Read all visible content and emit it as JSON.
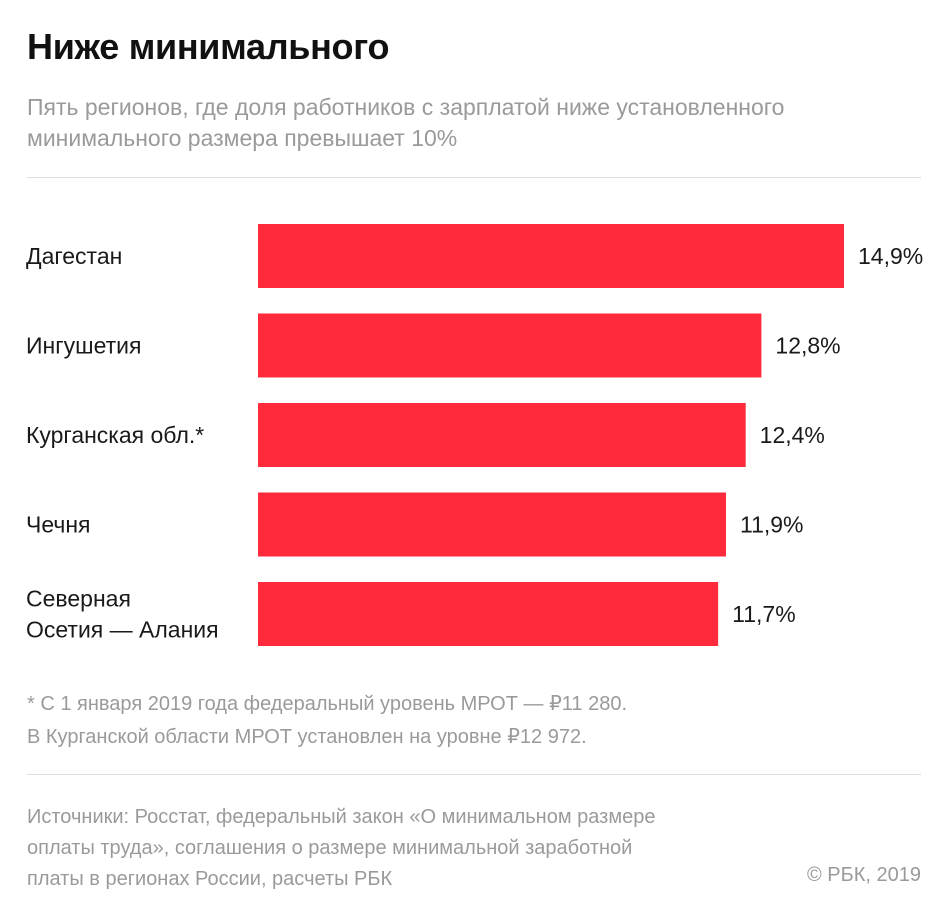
{
  "chart_data": {
    "type": "bar",
    "orientation": "horizontal",
    "title": "Ниже минимального",
    "subtitle": "Пять регионов, где доля работников с зарплатой ниже установленного минимального размера превышает 10%",
    "categories": [
      [
        "Дагестан"
      ],
      [
        "Ингушетия"
      ],
      [
        "Курганская обл.*"
      ],
      [
        "Чечня"
      ],
      [
        "Северная",
        "Осетия — Алания"
      ]
    ],
    "values": [
      14.9,
      12.8,
      12.4,
      11.9,
      11.7
    ],
    "value_labels": [
      "14,9%",
      "12,8%",
      "12,4%",
      "11,9%",
      "11,7%"
    ],
    "xlim": [
      0,
      14.9
    ],
    "bar_color": "#ff2a3c",
    "grid": false
  },
  "footnote": {
    "line1": "* С 1 января 2019 года федеральный уровень МРОТ — ₽11 280.",
    "line2": "В Курганской области МРОТ установлен на уровне ₽12 972."
  },
  "sources": {
    "line1": "Источники: Росстат, федеральный закон «О минимальном размере",
    "line2": "оплаты труда», соглашения о размере минимальной заработной",
    "line3": "платы в регионах России, расчеты РБК"
  },
  "copyright": "© РБК, 2019"
}
